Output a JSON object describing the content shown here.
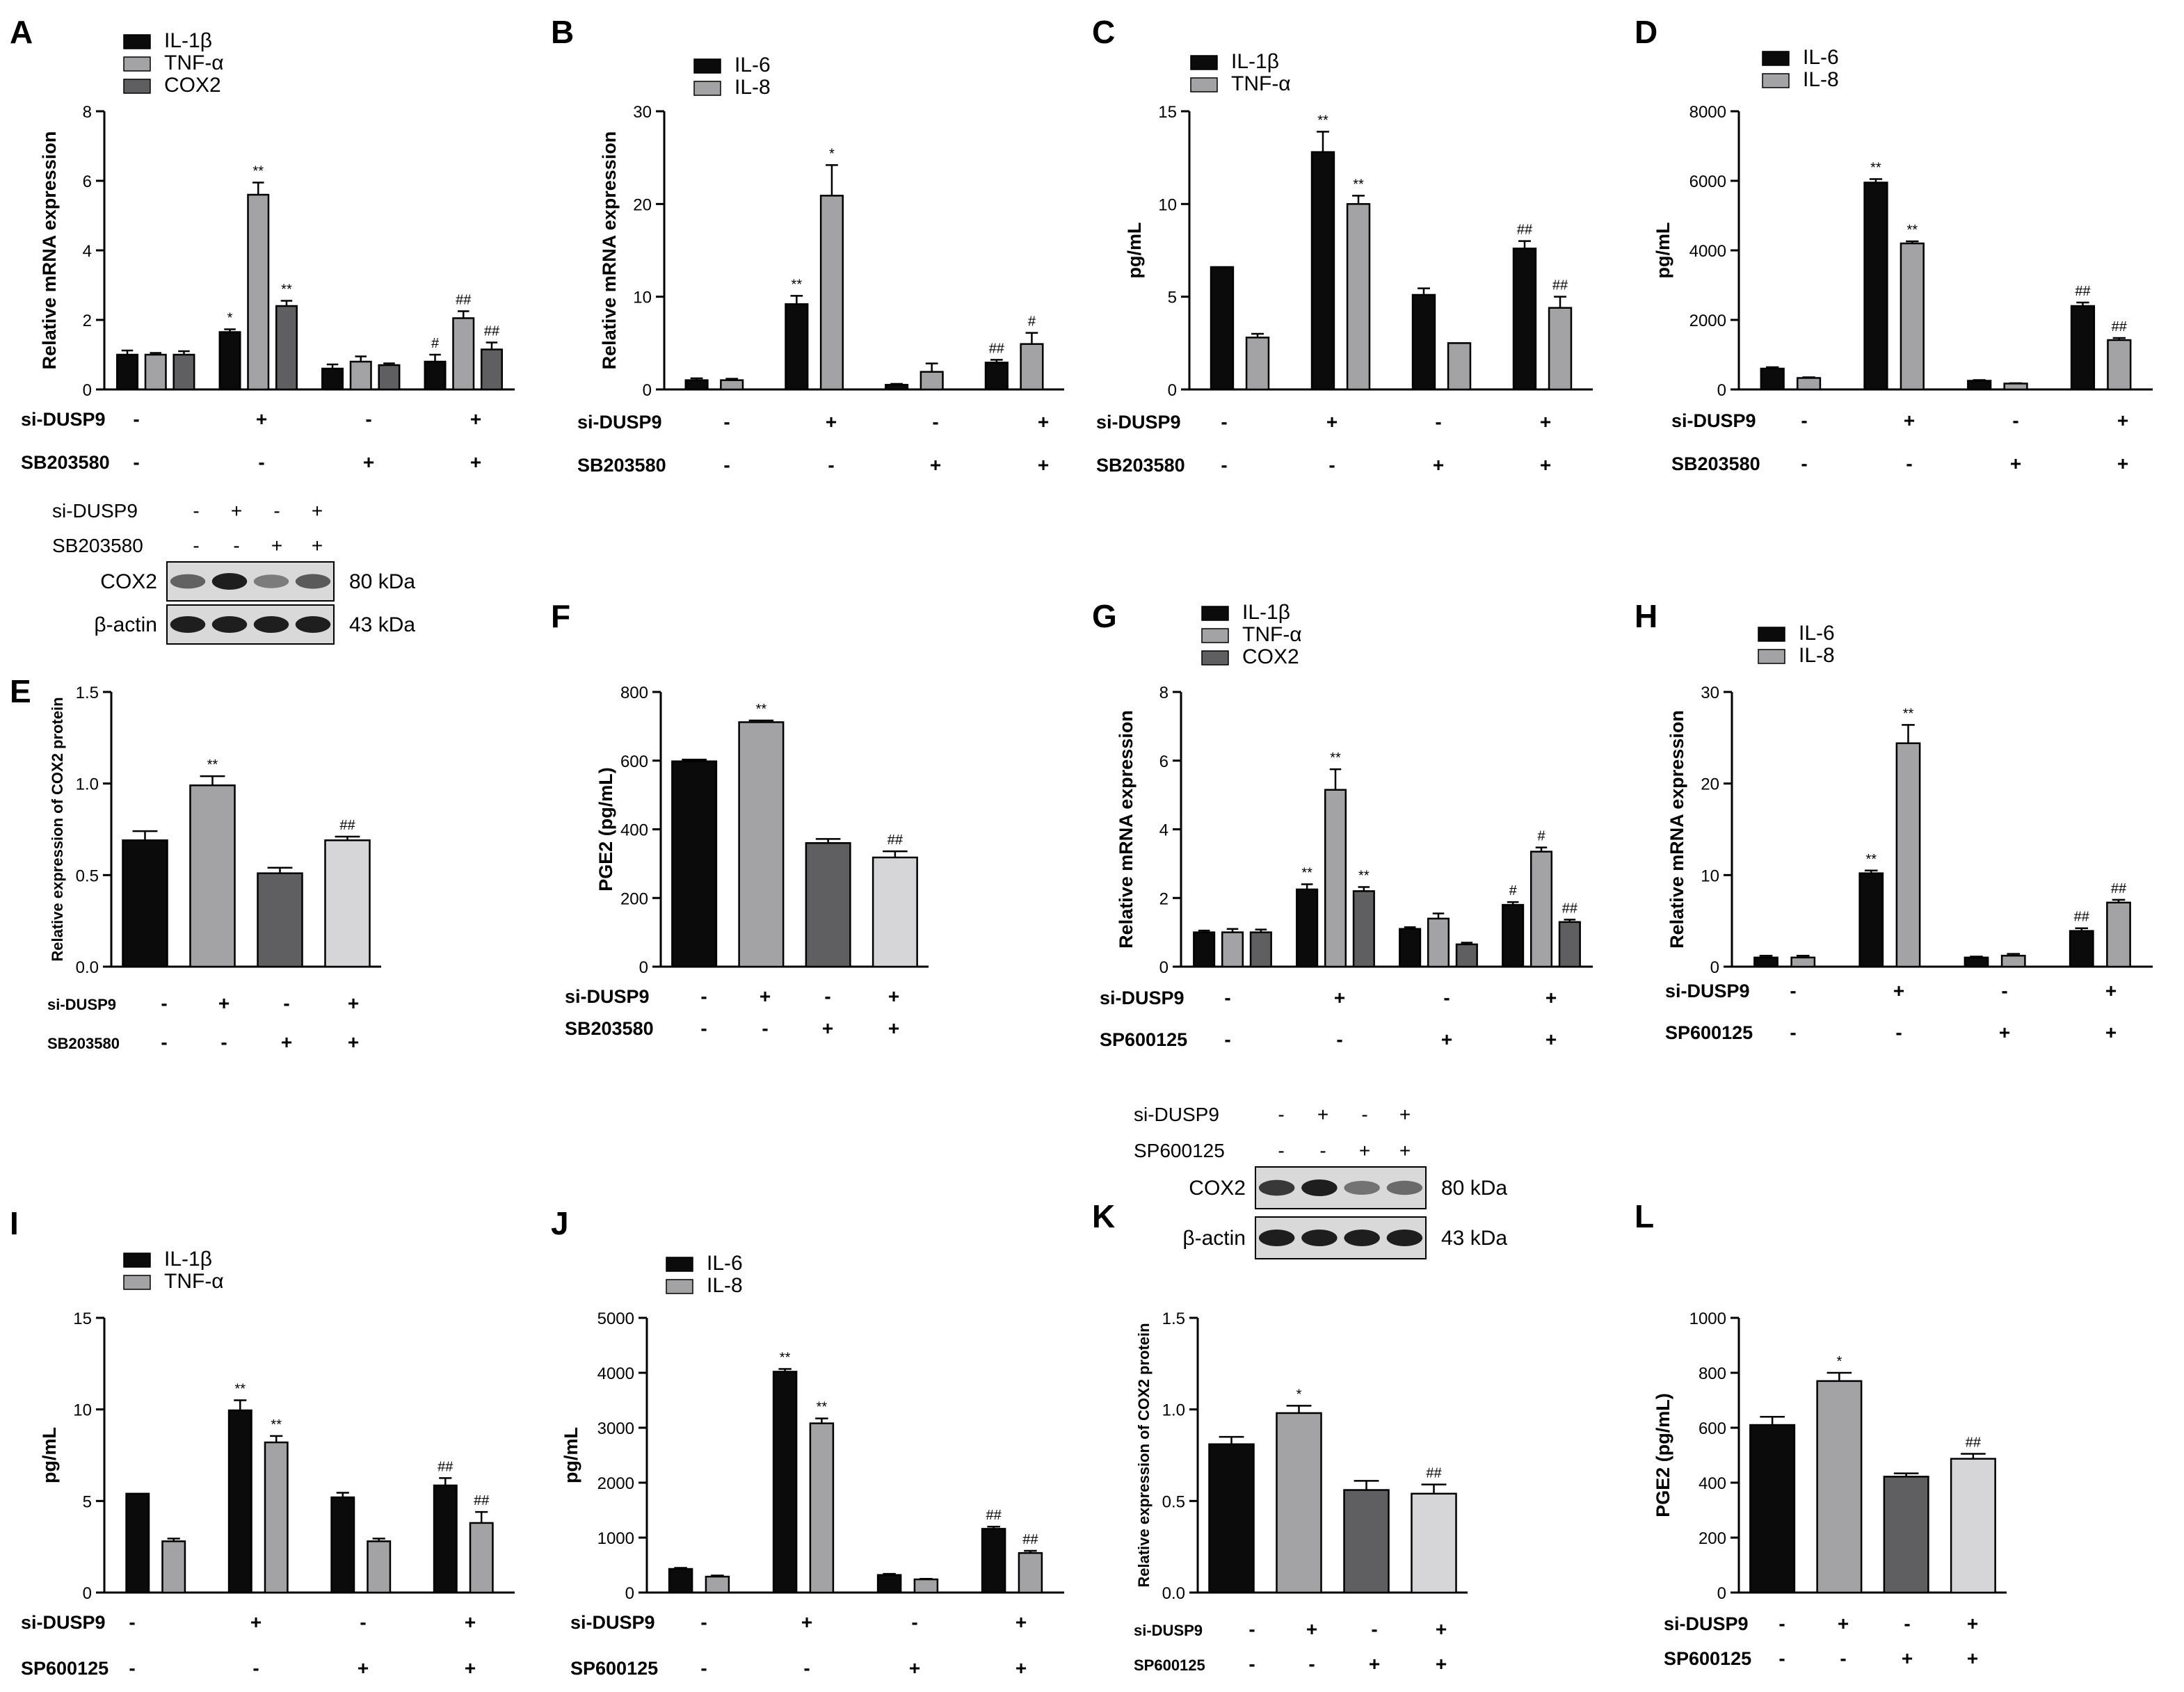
{
  "figure": {
    "panel_labels": [
      "A",
      "B",
      "C",
      "D",
      "E",
      "F",
      "G",
      "H",
      "I",
      "J",
      "K",
      "L"
    ],
    "colors": {
      "black": "#0b0b0b",
      "light_gray": "#a3a3a5",
      "dark_gray": "#5f5f61",
      "very_light_gray": "#d6d6d8",
      "axis": "#000000",
      "blot_bg": "#d9d9d9",
      "band": "#2a2a2a"
    },
    "blots": [
      {
        "panel": "E",
        "treatment_rows": [
          {
            "name": "si-DUSP9",
            "signs": [
              "-",
              "+",
              "-",
              "+"
            ]
          },
          {
            "name": "SB203580",
            "signs": [
              "-",
              "-",
              "+",
              "+"
            ]
          }
        ],
        "bands": [
          {
            "label": "COX2",
            "size": "80 kDa",
            "intensity": [
              0.6,
              1.0,
              0.45,
              0.65
            ]
          },
          {
            "label": "β-actin",
            "size": "43 kDa",
            "intensity": [
              1.0,
              1.0,
              1.0,
              1.0
            ]
          }
        ]
      },
      {
        "panel": "K",
        "treatment_rows": [
          {
            "name": "si-DUSP9",
            "signs": [
              "-",
              "+",
              "-",
              "+"
            ]
          },
          {
            "name": "SP600125",
            "signs": [
              "-",
              "-",
              "+",
              "+"
            ]
          }
        ],
        "bands": [
          {
            "label": "COX2",
            "size": "80 kDa",
            "intensity": [
              0.85,
              1.0,
              0.5,
              0.55
            ]
          },
          {
            "label": "β-actin",
            "size": "43 kDa",
            "intensity": [
              1.0,
              1.0,
              1.0,
              1.0
            ]
          }
        ]
      }
    ]
  },
  "chart_data": [
    {
      "panel": "A",
      "type": "bar",
      "ylabel": "Relative mRNA expression",
      "ylim": [
        0,
        8
      ],
      "yticks": [
        "0",
        "2",
        "4",
        "6",
        "8"
      ],
      "series": [
        {
          "name": "IL-1β",
          "color": "#0b0b0b",
          "values": [
            1.0,
            1.65,
            0.6,
            0.8
          ],
          "errors": [
            0.12,
            0.08,
            0.12,
            0.2
          ],
          "sig": [
            "",
            "*",
            "",
            "#"
          ]
        },
        {
          "name": "TNF-α",
          "color": "#a3a3a5",
          "values": [
            1.0,
            5.6,
            0.8,
            2.05
          ],
          "errors": [
            0.05,
            0.35,
            0.15,
            0.2
          ],
          "sig": [
            "",
            "**",
            "",
            "##"
          ]
        },
        {
          "name": "COX2",
          "color": "#5f5f61",
          "values": [
            1.0,
            2.4,
            0.7,
            1.15
          ],
          "errors": [
            0.1,
            0.15,
            0.05,
            0.2
          ],
          "sig": [
            "",
            "**",
            "",
            "##"
          ]
        }
      ],
      "treatments": [
        {
          "name": "si-DUSP9",
          "signs": [
            "-",
            "+",
            "-",
            "+"
          ]
        },
        {
          "name": "SB203580",
          "signs": [
            "-",
            "-",
            "+",
            "+"
          ]
        }
      ]
    },
    {
      "panel": "B",
      "type": "bar",
      "ylabel": "Relative mRNA expression",
      "ylim": [
        0,
        30
      ],
      "yticks": [
        "0",
        "10",
        "20",
        "30"
      ],
      "series": [
        {
          "name": "IL-6",
          "color": "#0b0b0b",
          "values": [
            1.0,
            9.2,
            0.5,
            2.9
          ],
          "errors": [
            0.2,
            0.9,
            0.1,
            0.3
          ],
          "sig": [
            "",
            "**",
            "",
            "##"
          ]
        },
        {
          "name": "IL-8",
          "color": "#a3a3a5",
          "values": [
            1.0,
            20.9,
            1.9,
            4.9
          ],
          "errors": [
            0.15,
            3.3,
            0.9,
            1.2
          ],
          "sig": [
            "",
            "*",
            "",
            "#"
          ]
        }
      ],
      "treatments": [
        {
          "name": "si-DUSP9",
          "signs": [
            "-",
            "+",
            "-",
            "+"
          ]
        },
        {
          "name": "SB203580",
          "signs": [
            "-",
            "-",
            "+",
            "+"
          ]
        }
      ]
    },
    {
      "panel": "C",
      "type": "bar",
      "ylabel": "pg/mL",
      "ylim": [
        0,
        15
      ],
      "yticks": [
        "0",
        "5",
        "10",
        "15"
      ],
      "series": [
        {
          "name": "IL-1β",
          "color": "#0b0b0b",
          "values": [
            6.6,
            12.8,
            5.1,
            7.6
          ],
          "errors": [
            0,
            1.1,
            0.35,
            0.4
          ],
          "sig": [
            "",
            "**",
            "",
            "##"
          ]
        },
        {
          "name": "TNF-α",
          "color": "#a3a3a5",
          "values": [
            2.8,
            10.0,
            2.5,
            4.4
          ],
          "errors": [
            0.2,
            0.45,
            0,
            0.6
          ],
          "sig": [
            "",
            "**",
            "",
            "##"
          ]
        }
      ],
      "treatments": [
        {
          "name": "si-DUSP9",
          "signs": [
            "-",
            "+",
            "-",
            "+"
          ]
        },
        {
          "name": "SB203580",
          "signs": [
            "-",
            "-",
            "+",
            "+"
          ]
        }
      ]
    },
    {
      "panel": "D",
      "type": "bar",
      "ylabel": "pg/mL",
      "ylim": [
        0,
        8000
      ],
      "yticks": [
        "0",
        "2000",
        "4000",
        "6000",
        "8000"
      ],
      "series": [
        {
          "name": "IL-6",
          "color": "#0b0b0b",
          "values": [
            600,
            5950,
            250,
            2400
          ],
          "errors": [
            40,
            100,
            20,
            100
          ],
          "sig": [
            "",
            "**",
            "",
            "##"
          ]
        },
        {
          "name": "IL-8",
          "color": "#a3a3a5",
          "values": [
            330,
            4200,
            170,
            1420
          ],
          "errors": [
            20,
            60,
            10,
            60
          ],
          "sig": [
            "",
            "**",
            "",
            "##"
          ]
        }
      ],
      "treatments": [
        {
          "name": "si-DUSP9",
          "signs": [
            "-",
            "+",
            "-",
            "+"
          ]
        },
        {
          "name": "SB203580",
          "signs": [
            "-",
            "-",
            "+",
            "+"
          ]
        }
      ]
    },
    {
      "panel": "E",
      "type": "bar",
      "ylabel": "Relative expression of COX2 protein",
      "ylim": [
        0,
        1.5
      ],
      "yticks": [
        "0.0",
        "0.5",
        "1.0",
        "1.5"
      ],
      "bars": [
        {
          "value": 0.69,
          "error": 0.05,
          "color": "#0b0b0b",
          "sig": ""
        },
        {
          "value": 0.99,
          "error": 0.05,
          "color": "#a3a3a5",
          "sig": "**"
        },
        {
          "value": 0.51,
          "error": 0.03,
          "color": "#5f5f61",
          "sig": ""
        },
        {
          "value": 0.69,
          "error": 0.02,
          "color": "#d6d6d8",
          "sig": "##"
        }
      ],
      "treatments": [
        {
          "name": "si-DUSP9",
          "signs": [
            "-",
            "+",
            "-",
            "+"
          ]
        },
        {
          "name": "SB203580",
          "signs": [
            "-",
            "-",
            "+",
            "+"
          ]
        }
      ]
    },
    {
      "panel": "F",
      "type": "bar",
      "ylabel": "PGE2 (pg/mL)",
      "ylim": [
        0,
        800
      ],
      "yticks": [
        "0",
        "200",
        "400",
        "600",
        "800"
      ],
      "bars": [
        {
          "value": 598,
          "error": 5,
          "color": "#0b0b0b",
          "sig": ""
        },
        {
          "value": 712,
          "error": 5,
          "color": "#a3a3a5",
          "sig": "**"
        },
        {
          "value": 360,
          "error": 12,
          "color": "#5f5f61",
          "sig": ""
        },
        {
          "value": 318,
          "error": 18,
          "color": "#d6d6d8",
          "sig": "##"
        }
      ],
      "treatments": [
        {
          "name": "si-DUSP9",
          "signs": [
            "-",
            "+",
            "-",
            "+"
          ]
        },
        {
          "name": "SB203580",
          "signs": [
            "-",
            "-",
            "+",
            "+"
          ]
        }
      ]
    },
    {
      "panel": "G",
      "type": "bar",
      "ylabel": "Relative mRNA expression",
      "ylim": [
        0,
        8
      ],
      "yticks": [
        "0",
        "2",
        "4",
        "6",
        "8"
      ],
      "series": [
        {
          "name": "IL-1β",
          "color": "#0b0b0b",
          "values": [
            1.0,
            2.25,
            1.1,
            1.8
          ],
          "errors": [
            0.05,
            0.15,
            0.05,
            0.08
          ],
          "sig": [
            "",
            "**",
            "",
            "#"
          ]
        },
        {
          "name": "TNF-α",
          "color": "#a3a3a5",
          "values": [
            1.0,
            5.15,
            1.4,
            3.35
          ],
          "errors": [
            0.1,
            0.6,
            0.15,
            0.12
          ],
          "sig": [
            "",
            "**",
            "",
            "#"
          ]
        },
        {
          "name": "COX2",
          "color": "#5f5f61",
          "values": [
            1.0,
            2.2,
            0.65,
            1.3
          ],
          "errors": [
            0.08,
            0.12,
            0.05,
            0.07
          ],
          "sig": [
            "",
            "**",
            "",
            "##"
          ]
        }
      ],
      "treatments": [
        {
          "name": "si-DUSP9",
          "signs": [
            "-",
            "+",
            "-",
            "+"
          ]
        },
        {
          "name": "SP600125",
          "signs": [
            "-",
            "-",
            "+",
            "+"
          ]
        }
      ]
    },
    {
      "panel": "H",
      "type": "bar",
      "ylabel": "Relative mRNA expression",
      "ylim": [
        0,
        30
      ],
      "yticks": [
        "0",
        "10",
        "20",
        "30"
      ],
      "series": [
        {
          "name": "IL-6",
          "color": "#0b0b0b",
          "values": [
            1.0,
            10.2,
            1.0,
            3.9
          ],
          "errors": [
            0.2,
            0.3,
            0.1,
            0.3
          ],
          "sig": [
            "",
            "**",
            "",
            "##"
          ]
        },
        {
          "name": "IL-8",
          "color": "#a3a3a5",
          "values": [
            1.0,
            24.4,
            1.2,
            7.0
          ],
          "errors": [
            0.2,
            2.0,
            0.2,
            0.3
          ],
          "sig": [
            "",
            "**",
            "",
            "##"
          ]
        }
      ],
      "treatments": [
        {
          "name": "si-DUSP9",
          "signs": [
            "-",
            "+",
            "-",
            "+"
          ]
        },
        {
          "name": "SP600125",
          "signs": [
            "-",
            "-",
            "+",
            "+"
          ]
        }
      ]
    },
    {
      "panel": "I",
      "type": "bar",
      "ylabel": "pg/mL",
      "ylim": [
        0,
        15
      ],
      "yticks": [
        "0",
        "5",
        "10",
        "15"
      ],
      "series": [
        {
          "name": "IL-1β",
          "color": "#0b0b0b",
          "values": [
            5.4,
            9.95,
            5.2,
            5.85
          ],
          "errors": [
            0,
            0.55,
            0.25,
            0.4
          ],
          "sig": [
            "",
            "**",
            "",
            "##"
          ]
        },
        {
          "name": "TNF-α",
          "color": "#a3a3a5",
          "values": [
            2.8,
            8.2,
            2.8,
            3.8
          ],
          "errors": [
            0.15,
            0.35,
            0.15,
            0.6
          ],
          "sig": [
            "",
            "**",
            "",
            "##"
          ]
        }
      ],
      "treatments": [
        {
          "name": "si-DUSP9",
          "signs": [
            "-",
            "+",
            "-",
            "+"
          ]
        },
        {
          "name": "SP600125",
          "signs": [
            "-",
            "-",
            "+",
            "+"
          ]
        }
      ]
    },
    {
      "panel": "J",
      "type": "bar",
      "ylabel": "pg/mL",
      "ylim": [
        0,
        5000
      ],
      "yticks": [
        "0",
        "1000",
        "2000",
        "3000",
        "4000",
        "5000"
      ],
      "series": [
        {
          "name": "IL-6",
          "color": "#0b0b0b",
          "values": [
            430,
            4020,
            320,
            1160
          ],
          "errors": [
            20,
            50,
            20,
            40
          ],
          "sig": [
            "",
            "**",
            "",
            "##"
          ]
        },
        {
          "name": "IL-8",
          "color": "#a3a3a5",
          "values": [
            290,
            3080,
            240,
            720
          ],
          "errors": [
            20,
            90,
            10,
            40
          ],
          "sig": [
            "",
            "**",
            "",
            "##"
          ]
        }
      ],
      "treatments": [
        {
          "name": "si-DUSP9",
          "signs": [
            "-",
            "+",
            "-",
            "+"
          ]
        },
        {
          "name": "SP600125",
          "signs": [
            "-",
            "-",
            "+",
            "+"
          ]
        }
      ]
    },
    {
      "panel": "K",
      "type": "bar",
      "ylabel": "Relative expression of COX2 protein",
      "ylim": [
        0,
        1.5
      ],
      "yticks": [
        "0.0",
        "0.5",
        "1.0",
        "1.5"
      ],
      "bars": [
        {
          "value": 0.81,
          "error": 0.04,
          "color": "#0b0b0b",
          "sig": ""
        },
        {
          "value": 0.98,
          "error": 0.04,
          "color": "#a3a3a5",
          "sig": "*"
        },
        {
          "value": 0.56,
          "error": 0.05,
          "color": "#5f5f61",
          "sig": ""
        },
        {
          "value": 0.54,
          "error": 0.05,
          "color": "#d6d6d8",
          "sig": "##"
        }
      ],
      "treatments": [
        {
          "name": "si-DUSP9",
          "signs": [
            "-",
            "+",
            "-",
            "+"
          ]
        },
        {
          "name": "SP600125",
          "signs": [
            "-",
            "-",
            "+",
            "+"
          ]
        }
      ]
    },
    {
      "panel": "L",
      "type": "bar",
      "ylabel": "PGE2 (pg/mL)",
      "ylim": [
        0,
        1000
      ],
      "yticks": [
        "0",
        "200",
        "400",
        "600",
        "800",
        "1000"
      ],
      "bars": [
        {
          "value": 610,
          "error": 30,
          "color": "#0b0b0b",
          "sig": ""
        },
        {
          "value": 770,
          "error": 30,
          "color": "#a3a3a5",
          "sig": "*"
        },
        {
          "value": 422,
          "error": 12,
          "color": "#5f5f61",
          "sig": ""
        },
        {
          "value": 487,
          "error": 18,
          "color": "#d6d6d8",
          "sig": "##"
        }
      ],
      "treatments": [
        {
          "name": "si-DUSP9",
          "signs": [
            "-",
            "+",
            "-",
            "+"
          ]
        },
        {
          "name": "SP600125",
          "signs": [
            "-",
            "-",
            "+",
            "+"
          ]
        }
      ]
    }
  ]
}
